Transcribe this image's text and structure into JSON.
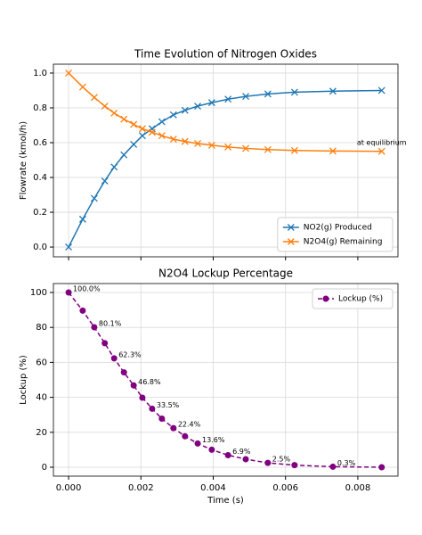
{
  "chart_data": [
    {
      "type": "line",
      "title": "Time Evolution of Nitrogen Oxides",
      "ylabel": "Flowrate (kmol/h)",
      "x": [
        0,
        0.00039,
        0.00071,
        0.001,
        0.00126,
        0.00153,
        0.0018,
        0.00204,
        0.00231,
        0.00258,
        0.0029,
        0.00322,
        0.00357,
        0.00396,
        0.00441,
        0.0049,
        0.00551,
        0.00625,
        0.00731,
        0.00866
      ],
      "series": [
        {
          "name": "NO2(g) Produced",
          "color": "#1f77b4",
          "marker": "x",
          "linestyle": "solid",
          "values": [
            0,
            0.16,
            0.28,
            0.38,
            0.46,
            0.53,
            0.59,
            0.64,
            0.68,
            0.72,
            0.76,
            0.786,
            0.81,
            0.83,
            0.85,
            0.866,
            0.88,
            0.89,
            0.896,
            0.9
          ]
        },
        {
          "name": "N2O4(g) Remaining",
          "color": "#ff7f0e",
          "marker": "x",
          "linestyle": "solid",
          "values": [
            1.0,
            0.92,
            0.86,
            0.81,
            0.77,
            0.735,
            0.705,
            0.68,
            0.66,
            0.64,
            0.62,
            0.607,
            0.595,
            0.585,
            0.575,
            0.567,
            0.56,
            0.555,
            0.552,
            0.55
          ]
        }
      ],
      "annotations": [
        {
          "text": "at equilibrium",
          "x": 0.00866,
          "y": 0.6,
          "color": "#800080"
        }
      ],
      "xlim": [
        -0.00042,
        0.00911
      ],
      "xticks": [
        0,
        0.002,
        0.004,
        0.006,
        0.008
      ],
      "ylim": [
        -0.056,
        1.051
      ],
      "yticks": [
        {
          "value": 0,
          "label": "0.0"
        },
        {
          "value": 0.2,
          "label": "0.2"
        },
        {
          "value": 0.4,
          "label": "0.4"
        },
        {
          "value": 0.6,
          "label": "0.6"
        },
        {
          "value": 0.8,
          "label": "0.8"
        },
        {
          "value": 1,
          "label": "1.0"
        }
      ],
      "grid": true,
      "legend": "lower right"
    },
    {
      "type": "line",
      "title": "N2O4 Lockup Percentage",
      "xlabel": "Time (s)",
      "ylabel": "Lockup (%)",
      "x": [
        0,
        0.00039,
        0.00071,
        0.001,
        0.00126,
        0.00153,
        0.0018,
        0.00204,
        0.00231,
        0.00258,
        0.0029,
        0.00322,
        0.00357,
        0.00396,
        0.00441,
        0.0049,
        0.00551,
        0.00625,
        0.00731,
        0.00866
      ],
      "series": [
        {
          "name": "Lockup (%)",
          "color": "#800080",
          "marker": "o",
          "linestyle": "dashed",
          "values": [
            100,
            89.6,
            80.1,
            71,
            62.3,
            54.3,
            46.8,
            39.8,
            33.5,
            27.8,
            22.4,
            17.7,
            13.6,
            10,
            6.9,
            4.6,
            2.5,
            1.2,
            0.3,
            0
          ],
          "value_labels": [
            "100.0%",
            null,
            "80.1%",
            null,
            "62.3%",
            null,
            "46.8%",
            null,
            "33.5%",
            null,
            "22.4%",
            null,
            "13.6%",
            null,
            "6.9%",
            null,
            "2.5%",
            null,
            "0.3%",
            null
          ]
        }
      ],
      "xlim": [
        -0.00042,
        0.00911
      ],
      "xticks": [
        {
          "value": 0,
          "label": "0.000"
        },
        {
          "value": 0.002,
          "label": "0.002"
        },
        {
          "value": 0.004,
          "label": "0.004"
        },
        {
          "value": 0.006,
          "label": "0.006"
        },
        {
          "value": 0.008,
          "label": "0.008"
        }
      ],
      "ylim": [
        -5.1,
        105.1
      ],
      "yticks": [
        0,
        20,
        40,
        60,
        80,
        100
      ],
      "grid": true,
      "legend": "upper right"
    }
  ]
}
